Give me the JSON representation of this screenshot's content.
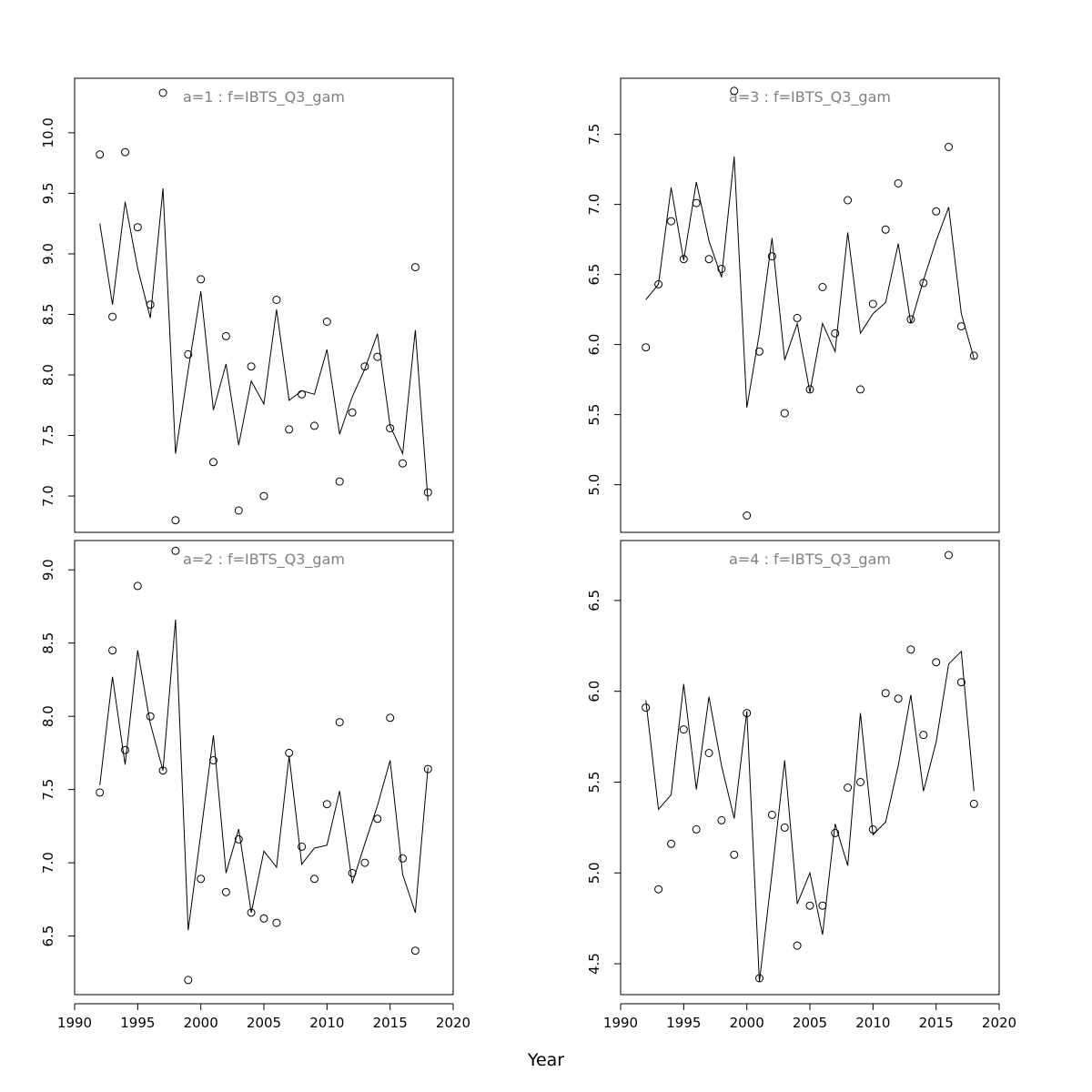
{
  "figure": {
    "xlabel": "Year"
  },
  "chart_data": [
    {
      "type": "line",
      "title": "a=1  :  f=IBTS_Q3_gam",
      "xlim": [
        1990,
        2020
      ],
      "ylim": [
        6.7,
        10.45
      ],
      "xticks": [
        1990,
        1995,
        2000,
        2005,
        2010,
        2015,
        2020
      ],
      "xtick_labels": [
        "1990",
        "1995",
        "2000",
        "2005",
        "2010",
        "2015",
        "2020"
      ],
      "yticks": [
        7.0,
        7.5,
        8.0,
        8.5,
        9.0,
        9.5,
        10.0
      ],
      "ytick_labels": [
        "7.0",
        "7.5",
        "8.0",
        "8.5",
        "9.0",
        "9.5",
        "10.0"
      ],
      "x": [
        1992,
        1993,
        1994,
        1995,
        1996,
        1997,
        1998,
        1999,
        2000,
        2001,
        2002,
        2003,
        2004,
        2005,
        2006,
        2007,
        2008,
        2009,
        2010,
        2011,
        2012,
        2013,
        2014,
        2015,
        2016,
        2017,
        2018
      ],
      "series": [
        {
          "type": "scatter",
          "values": [
            9.82,
            8.48,
            9.84,
            9.22,
            8.58,
            10.33,
            6.8,
            8.17,
            8.79,
            7.28,
            8.32,
            6.88,
            8.07,
            7.0,
            8.62,
            7.55,
            7.84,
            7.58,
            8.44,
            7.12,
            7.69,
            8.07,
            8.15,
            7.56,
            7.27,
            8.89,
            7.03
          ]
        },
        {
          "type": "line",
          "values": [
            9.25,
            8.58,
            9.43,
            8.88,
            8.47,
            9.54,
            7.35,
            8.04,
            8.69,
            7.71,
            8.09,
            7.42,
            7.95,
            7.76,
            8.54,
            7.79,
            7.87,
            7.84,
            8.21,
            7.51,
            7.82,
            8.05,
            8.34,
            7.58,
            7.35,
            8.37,
            6.96
          ]
        }
      ]
    },
    {
      "type": "line",
      "title": "a=2  :  f=IBTS_Q3_gam",
      "xlim": [
        1990,
        2020
      ],
      "ylim": [
        6.1,
        9.2
      ],
      "xticks": [
        1990,
        1995,
        2000,
        2005,
        2010,
        2015,
        2020
      ],
      "xtick_labels": [
        "1990",
        "1995",
        "2000",
        "2005",
        "2010",
        "2015",
        "2020"
      ],
      "yticks": [
        6.5,
        7.0,
        7.5,
        8.0,
        8.5,
        9.0
      ],
      "ytick_labels": [
        "6.5",
        "7.0",
        "7.5",
        "8.0",
        "8.5",
        "9.0"
      ],
      "x": [
        1992,
        1993,
        1994,
        1995,
        1996,
        1997,
        1998,
        1999,
        2000,
        2001,
        2002,
        2003,
        2004,
        2005,
        2006,
        2007,
        2008,
        2009,
        2010,
        2011,
        2012,
        2013,
        2014,
        2015,
        2016,
        2017,
        2018
      ],
      "series": [
        {
          "type": "scatter",
          "values": [
            7.48,
            8.45,
            7.77,
            8.89,
            8.0,
            7.63,
            9.13,
            6.2,
            6.89,
            7.7,
            6.8,
            7.16,
            6.66,
            6.62,
            6.59,
            7.75,
            7.11,
            6.89,
            7.4,
            7.96,
            6.93,
            7.0,
            7.3,
            7.99,
            7.03,
            6.4,
            7.64
          ]
        },
        {
          "type": "line",
          "values": [
            7.53,
            8.27,
            7.67,
            8.45,
            7.95,
            7.63,
            8.66,
            6.54,
            7.2,
            7.87,
            6.93,
            7.23,
            6.66,
            7.08,
            6.97,
            7.73,
            6.99,
            7.1,
            7.12,
            7.49,
            6.86,
            7.13,
            7.39,
            7.7,
            6.92,
            6.66,
            7.65
          ]
        }
      ]
    },
    {
      "type": "line",
      "title": "a=3  :  f=IBTS_Q3_gam",
      "xlim": [
        1990,
        2020
      ],
      "ylim": [
        4.66,
        7.9
      ],
      "xticks": [
        1990,
        1995,
        2000,
        2005,
        2010,
        2015,
        2020
      ],
      "xtick_labels": [
        "1990",
        "1995",
        "2000",
        "2005",
        "2010",
        "2015",
        "2020"
      ],
      "yticks": [
        5.0,
        5.5,
        6.0,
        6.5,
        7.0,
        7.5
      ],
      "ytick_labels": [
        "5.0",
        "5.5",
        "6.0",
        "6.5",
        "7.0",
        "7.5"
      ],
      "x": [
        1992,
        1993,
        1994,
        1995,
        1996,
        1997,
        1998,
        1999,
        2000,
        2001,
        2002,
        2003,
        2004,
        2005,
        2006,
        2007,
        2008,
        2009,
        2010,
        2011,
        2012,
        2013,
        2014,
        2015,
        2016,
        2017,
        2018
      ],
      "series": [
        {
          "type": "scatter",
          "values": [
            5.98,
            6.43,
            6.88,
            6.61,
            7.01,
            6.61,
            6.54,
            7.81,
            4.78,
            5.95,
            6.63,
            5.51,
            6.19,
            5.68,
            6.41,
            6.08,
            7.03,
            5.68,
            6.29,
            6.82,
            7.15,
            6.18,
            6.44,
            6.95,
            7.41,
            6.13,
            5.92
          ]
        },
        {
          "type": "line",
          "values": [
            6.32,
            6.43,
            7.12,
            6.6,
            7.16,
            6.74,
            6.48,
            7.34,
            5.55,
            6.08,
            6.76,
            5.89,
            6.15,
            5.66,
            6.15,
            5.95,
            6.8,
            6.08,
            6.22,
            6.3,
            6.72,
            6.15,
            6.46,
            6.74,
            6.98,
            6.22,
            5.9
          ]
        }
      ]
    },
    {
      "type": "line",
      "title": "a=4  :  f=IBTS_Q3_gam",
      "xlim": [
        1990,
        2020
      ],
      "ylim": [
        4.33,
        6.83
      ],
      "xticks": [
        1990,
        1995,
        2000,
        2005,
        2010,
        2015,
        2020
      ],
      "xtick_labels": [
        "1990",
        "1995",
        "2000",
        "2005",
        "2010",
        "2015",
        "2020"
      ],
      "yticks": [
        4.5,
        5.0,
        5.5,
        6.0,
        6.5
      ],
      "ytick_labels": [
        "4.5",
        "5.0",
        "5.5",
        "6.0",
        "6.5"
      ],
      "x": [
        1992,
        1993,
        1994,
        1995,
        1996,
        1997,
        1998,
        1999,
        2000,
        2001,
        2002,
        2003,
        2004,
        2005,
        2006,
        2007,
        2008,
        2009,
        2010,
        2011,
        2012,
        2013,
        2014,
        2015,
        2016,
        2017,
        2018
      ],
      "series": [
        {
          "type": "scatter",
          "values": [
            5.91,
            4.91,
            5.16,
            5.79,
            5.24,
            5.66,
            5.29,
            5.1,
            5.88,
            4.42,
            5.32,
            5.25,
            4.6,
            4.82,
            4.82,
            5.22,
            5.47,
            5.5,
            5.24,
            5.99,
            5.96,
            6.23,
            5.76,
            6.16,
            6.75,
            6.05,
            5.38
          ]
        },
        {
          "type": "line",
          "values": [
            5.95,
            5.35,
            5.43,
            6.04,
            5.46,
            5.97,
            5.59,
            5.3,
            5.89,
            4.4,
            5.0,
            5.62,
            4.83,
            5.0,
            4.66,
            5.27,
            5.04,
            5.88,
            5.21,
            5.28,
            5.59,
            5.98,
            5.45,
            5.72,
            6.15,
            6.22,
            5.45
          ]
        }
      ]
    }
  ]
}
